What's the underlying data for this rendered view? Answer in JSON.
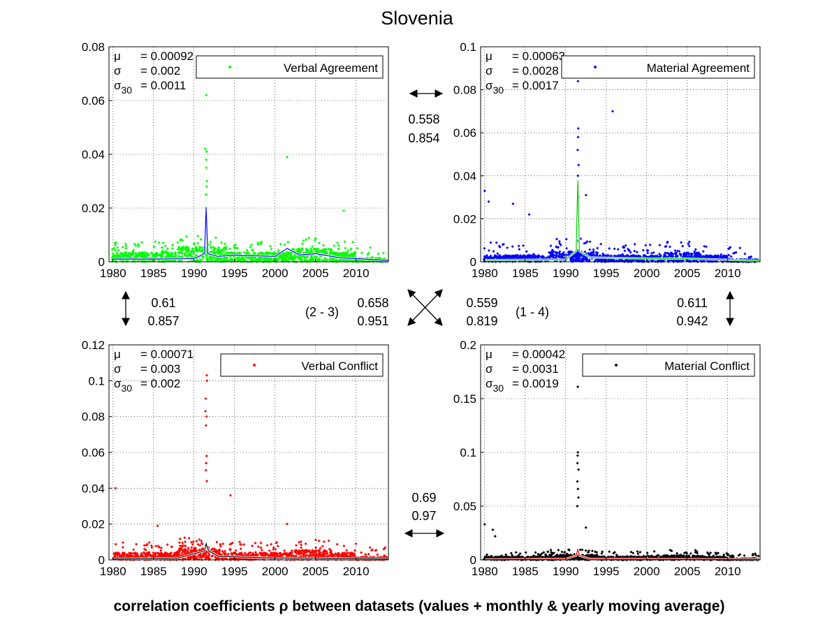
{
  "title": "Slovenia",
  "caption": "correlation coefficients ρ between datasets (values + monthly & yearly moving average)",
  "correlations": {
    "top": [
      "0.558",
      "0.854"
    ],
    "left": [
      "0.61",
      "0.857"
    ],
    "right": [
      "0.611",
      "0.942"
    ],
    "bottom": [
      "0.69",
      "0.97"
    ],
    "diag_23_label": "(2 - 3)",
    "diag_23": [
      "0.658",
      "0.951"
    ],
    "diag_14_label": "(1 - 4)",
    "diag_14": [
      "0.559",
      "0.819"
    ]
  },
  "colors": {
    "verbal_agreement": "#00ff00",
    "material_agreement": "#0000ff",
    "verbal_conflict": "#ff0000",
    "material_conflict": "#000000"
  },
  "chart_data": [
    {
      "type": "scatter",
      "legend": "Verbal Agreement",
      "color": "#00ff00",
      "avg_color": "#0000ff",
      "xlim": [
        1979.5,
        2014
      ],
      "ylim": [
        0,
        0.08
      ],
      "xticks": [
        1980,
        1985,
        1990,
        1995,
        2000,
        2005,
        2010
      ],
      "yticks": [
        0,
        0.02,
        0.04,
        0.06,
        0.08
      ],
      "ytick_labels": [
        "0",
        "0.02",
        "0.04",
        "0.06",
        "0.08"
      ],
      "grid": true,
      "legend_position": "top-right",
      "stats": {
        "mu": "= 0.00092",
        "sigma": "= 0.002",
        "sigma30": "= 0.0011"
      },
      "level": 0.0035,
      "noise": 0.004,
      "spike_x": 1991.5,
      "spike_values": [
        0.062,
        0.041,
        0.038,
        0.035,
        0.03,
        0.028,
        0.025,
        0.02
      ],
      "outliers": [
        [
          2001.5,
          0.039
        ],
        [
          2008.5,
          0.019
        ],
        [
          1991.4,
          0.042
        ]
      ],
      "avg_points": [
        [
          1980,
          0.001
        ],
        [
          1985,
          0.001
        ],
        [
          1990,
          0.0012
        ],
        [
          1991.3,
          0.003
        ],
        [
          1991.5,
          0.02
        ],
        [
          1991.7,
          0.003
        ],
        [
          1993,
          0.002
        ],
        [
          1995,
          0.0025
        ],
        [
          2000,
          0.002
        ],
        [
          2001.5,
          0.005
        ],
        [
          2003,
          0.0025
        ],
        [
          2005,
          0.003
        ],
        [
          2008,
          0.0015
        ],
        [
          2014,
          0.0005
        ]
      ]
    },
    {
      "type": "scatter",
      "legend": "Material Agreement",
      "color": "#0000ff",
      "avg_color": "#00cc00",
      "xlim": [
        1979.5,
        2014
      ],
      "ylim": [
        0,
        0.1
      ],
      "xticks": [
        1980,
        1985,
        1990,
        1995,
        2000,
        2005,
        2010
      ],
      "yticks": [
        0,
        0.02,
        0.04,
        0.06,
        0.08,
        0.1
      ],
      "ytick_labels": [
        "0",
        "0.02",
        "0.04",
        "0.06",
        "0.08",
        "0.1"
      ],
      "grid": true,
      "legend_position": "top-right",
      "stats": {
        "mu": "= 0.00063",
        "sigma": "= 0.0028",
        "sigma30": "= 0.0017"
      },
      "level": 0.003,
      "noise": 0.006,
      "spike_x": 1991.5,
      "spike_values": [
        0.084,
        0.062,
        0.058,
        0.052,
        0.045,
        0.04,
        0.035,
        0.03,
        0.026
      ],
      "outliers": [
        [
          1995.8,
          0.07
        ],
        [
          1980,
          0.033
        ],
        [
          1980.5,
          0.028
        ],
        [
          1983.5,
          0.027
        ],
        [
          1992.5,
          0.031
        ],
        [
          1985.5,
          0.022
        ]
      ],
      "avg_points": [
        [
          1980,
          0.0008
        ],
        [
          1990,
          0.001
        ],
        [
          1991.3,
          0.005
        ],
        [
          1991.5,
          0.038
        ],
        [
          1991.7,
          0.005
        ],
        [
          1993,
          0.002
        ],
        [
          2000,
          0.0015
        ],
        [
          2005,
          0.0015
        ],
        [
          2014,
          0.0005
        ]
      ]
    },
    {
      "type": "scatter",
      "legend": "Verbal Conflict",
      "color": "#ff0000",
      "avg_color": "#000000",
      "xlim": [
        1979.5,
        2014
      ],
      "ylim": [
        0,
        0.12
      ],
      "xticks": [
        1980,
        1985,
        1990,
        1995,
        2000,
        2005,
        2010
      ],
      "yticks": [
        0,
        0.02,
        0.04,
        0.06,
        0.08,
        0.1,
        0.12
      ],
      "ytick_labels": [
        "0",
        "0.02",
        "0.04",
        "0.06",
        "0.08",
        "0.1",
        "0.12"
      ],
      "grid": true,
      "legend_position": "top-right",
      "stats": {
        "mu": "= 0.00071",
        "sigma": "= 0.003",
        "sigma30": "= 0.002"
      },
      "level": 0.004,
      "noise": 0.006,
      "spike_x": 1991.5,
      "spike_values": [
        0.103,
        0.1,
        0.09,
        0.083,
        0.08,
        0.075,
        0.058,
        0.054,
        0.05,
        0.044
      ],
      "outliers": [
        [
          1980.3,
          0.04
        ],
        [
          1994.5,
          0.036
        ],
        [
          2001.5,
          0.02
        ],
        [
          1985.5,
          0.019
        ]
      ],
      "avg_points": [
        [
          1980,
          0.0005
        ],
        [
          1988,
          0.001
        ],
        [
          1991.3,
          0.005
        ],
        [
          1991.5,
          0.009
        ],
        [
          1991.8,
          0.005
        ],
        [
          1993,
          0.002
        ],
        [
          2000,
          0.001
        ],
        [
          2005,
          0.001
        ],
        [
          2014,
          0.0005
        ]
      ]
    },
    {
      "type": "scatter",
      "legend": "Material Conflict",
      "color": "#000000",
      "avg_color": "#ff0000",
      "xlim": [
        1979.5,
        2014
      ],
      "ylim": [
        0,
        0.2
      ],
      "xticks": [
        1980,
        1985,
        1990,
        1995,
        2000,
        2005,
        2010
      ],
      "yticks": [
        0,
        0.05,
        0.1,
        0.15,
        0.2
      ],
      "ytick_labels": [
        "0",
        "0.05",
        "0.1",
        "0.15",
        "0.2"
      ],
      "grid": true,
      "legend_position": "top-right",
      "stats": {
        "mu": "= 0.00042",
        "sigma": "= 0.0031",
        "sigma30": "= 0.0019"
      },
      "level": 0.003,
      "noise": 0.005,
      "spike_x": 1991.5,
      "spike_values": [
        0.161,
        0.1,
        0.097,
        0.09,
        0.084,
        0.073,
        0.066,
        0.058,
        0.05
      ],
      "outliers": [
        [
          1980,
          0.033
        ],
        [
          1981,
          0.028
        ],
        [
          1981.3,
          0.022
        ],
        [
          1992.5,
          0.03
        ]
      ],
      "avg_points": [
        [
          1980,
          0.0005
        ],
        [
          1990,
          0.001
        ],
        [
          1991.3,
          0.004
        ],
        [
          1991.5,
          0.01
        ],
        [
          1991.7,
          0.004
        ],
        [
          1993,
          0.001
        ],
        [
          2014,
          0.0005
        ]
      ]
    }
  ]
}
